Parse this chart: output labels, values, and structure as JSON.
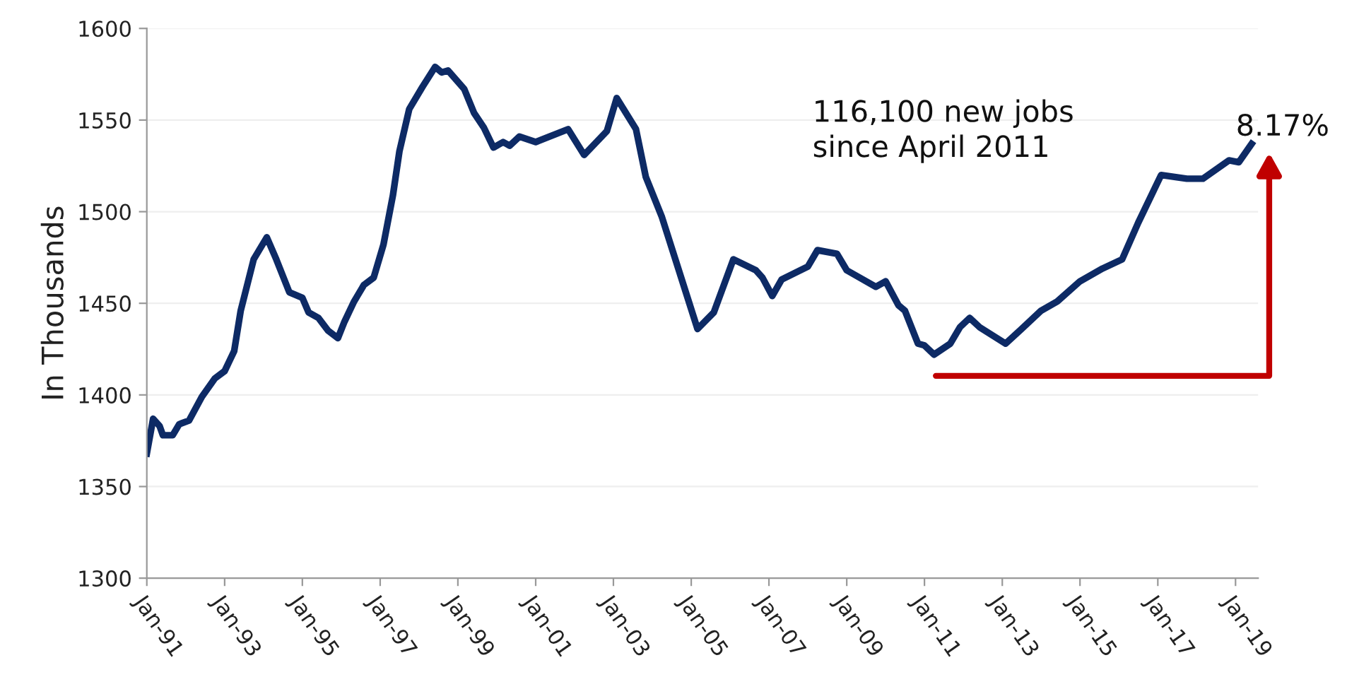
{
  "chart_data": {
    "type": "line",
    "ylabel": "In Thousands",
    "x": [
      "1991-01",
      "1991-03",
      "1991-05",
      "1991-06",
      "1991-09",
      "1991-11",
      "1992-02",
      "1992-06",
      "1992-10",
      "1993-01",
      "1993-04",
      "1993-06",
      "1993-10",
      "1994-02",
      "1994-05",
      "1994-09",
      "1995-01",
      "1995-03",
      "1995-06",
      "1995-09",
      "1995-12",
      "1996-02",
      "1996-05",
      "1996-08",
      "1996-11",
      "1997-02",
      "1997-05",
      "1997-07",
      "1997-10",
      "1998-02",
      "1998-06",
      "1998-08",
      "1998-10",
      "1999-03",
      "1999-06",
      "1999-09",
      "1999-12",
      "2000-03",
      "2000-05",
      "2000-08",
      "2001-01",
      "2001-11",
      "2002-04",
      "2002-11",
      "2003-02",
      "2003-08",
      "2003-11",
      "2004-04",
      "2005-03",
      "2005-08",
      "2006-02",
      "2006-09",
      "2006-11",
      "2007-02",
      "2007-05",
      "2008-01",
      "2008-04",
      "2008-10",
      "2009-01",
      "2009-10",
      "2010-01",
      "2010-05",
      "2010-07",
      "2010-11",
      "2011-01",
      "2011-04",
      "2011-09",
      "2011-12",
      "2012-03",
      "2012-06",
      "2013-02",
      "2013-07",
      "2014-01",
      "2014-06",
      "2015-01",
      "2015-08",
      "2016-02",
      "2016-07",
      "2017-02",
      "2017-10",
      "2018-03",
      "2018-11",
      "2019-02",
      "2019-06"
    ],
    "series": [
      {
        "color": "#0d2a65",
        "values": [
          1368,
          1387,
          1383,
          1378,
          1378,
          1384,
          1386,
          1399,
          1409,
          1413,
          1424,
          1446,
          1474,
          1486,
          1474,
          1456,
          1453,
          1445,
          1442,
          1435,
          1431,
          1440,
          1451,
          1460,
          1464,
          1482,
          1509,
          1533,
          1556,
          1568,
          1579,
          1576,
          1577,
          1567,
          1554,
          1546,
          1535,
          1538,
          1536,
          1541,
          1538,
          1545,
          1531,
          1544,
          1562,
          1545,
          1519,
          1497,
          1436,
          1445,
          1474,
          1468,
          1464,
          1454,
          1463,
          1470,
          1479,
          1477,
          1468,
          1459,
          1462,
          1449,
          1446,
          1428,
          1427,
          1422,
          1428,
          1437,
          1442,
          1437,
          1428,
          1436,
          1446,
          1451,
          1462,
          1469,
          1474,
          1494,
          1520,
          1518,
          1518,
          1528,
          1527,
          1537
        ]
      }
    ],
    "xlim": [
      "1991-01",
      "2019-08"
    ],
    "xticks": [
      {
        "value": "1991-01",
        "label": "Jan-91"
      },
      {
        "value": "1993-01",
        "label": "Jan-93"
      },
      {
        "value": "1995-01",
        "label": "Jan-95"
      },
      {
        "value": "1997-01",
        "label": "Jan-97"
      },
      {
        "value": "1999-01",
        "label": "Jan-99"
      },
      {
        "value": "2001-01",
        "label": "Jan-01"
      },
      {
        "value": "2003-01",
        "label": "Jan-03"
      },
      {
        "value": "2005-01",
        "label": "Jan-05"
      },
      {
        "value": "2007-01",
        "label": "Jan-07"
      },
      {
        "value": "2009-01",
        "label": "Jan-09"
      },
      {
        "value": "2011-01",
        "label": "Jan-11"
      },
      {
        "value": "2013-01",
        "label": "Jan-13"
      },
      {
        "value": "2015-01",
        "label": "Jan-15"
      },
      {
        "value": "2017-01",
        "label": "Jan-17"
      },
      {
        "value": "2019-01",
        "label": "Jan-19"
      }
    ],
    "ylim": [
      1300,
      1600
    ],
    "yticks": [
      1300,
      1350,
      1400,
      1450,
      1500,
      1550,
      1600
    ],
    "grid": "y",
    "legend": false,
    "marker": "none",
    "line_style": "solid",
    "annotations": [
      "116,100 new jobs\nsince April 2011",
      "8.17%"
    ]
  }
}
